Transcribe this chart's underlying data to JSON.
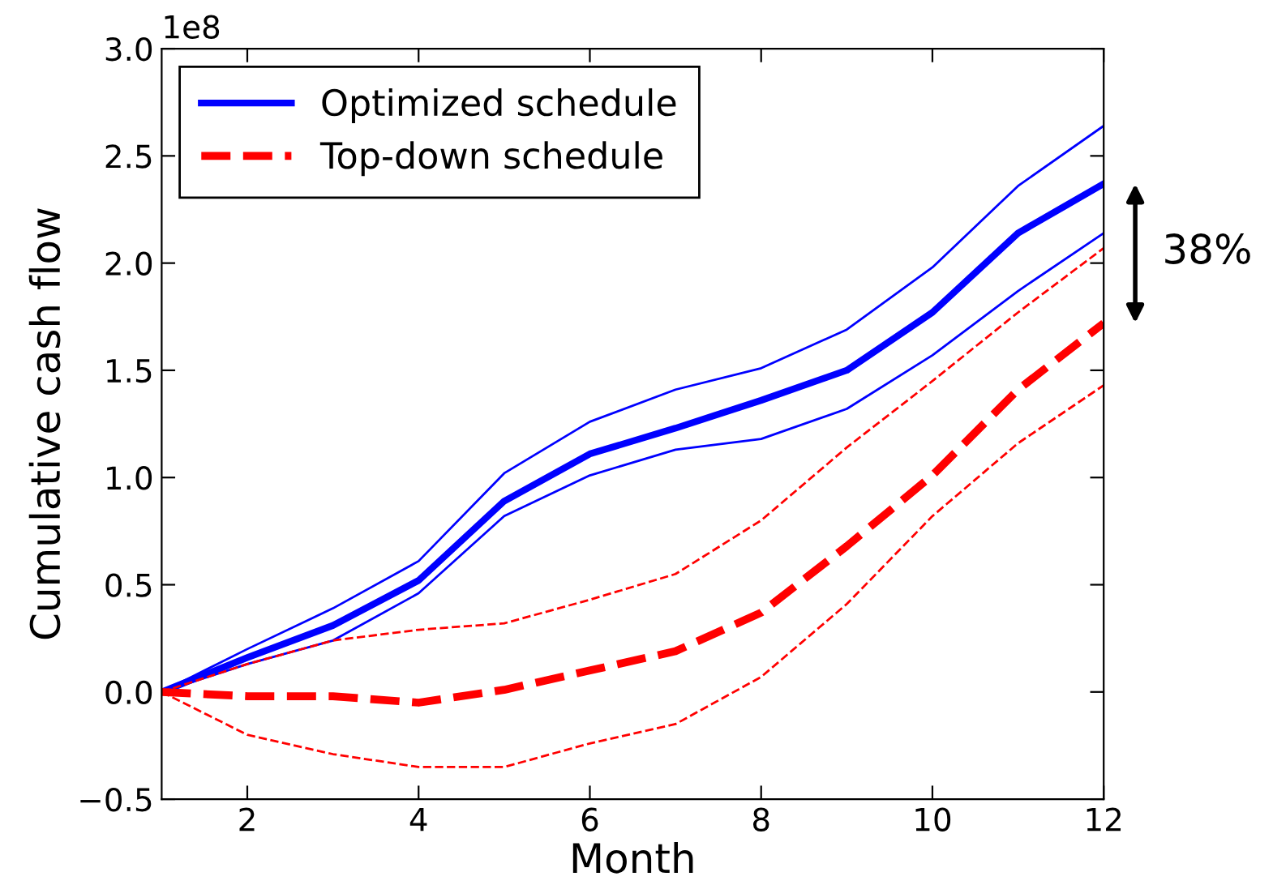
{
  "chart_data": {
    "type": "line",
    "xlabel": "Month",
    "ylabel": "Cumulative cash flow",
    "x": [
      1,
      2,
      3,
      4,
      5,
      6,
      7,
      8,
      9,
      10,
      11,
      12
    ],
    "series": [
      {
        "name": "Optimized schedule",
        "color": "#0000ff",
        "line_style": "solid",
        "values": [
          0,
          0.16,
          0.31,
          0.52,
          0.89,
          1.11,
          1.23,
          1.36,
          1.5,
          1.77,
          2.14,
          2.37
        ]
      },
      {
        "color": "#0000ff",
        "line_style": "solid",
        "values": [
          0,
          0.2,
          0.39,
          0.61,
          1.02,
          1.26,
          1.41,
          1.51,
          1.69,
          1.98,
          2.36,
          2.64
        ]
      },
      {
        "color": "#0000ff",
        "line_style": "solid",
        "values": [
          0,
          0.13,
          0.24,
          0.46,
          0.82,
          1.01,
          1.13,
          1.18,
          1.32,
          1.57,
          1.87,
          2.14
        ]
      },
      {
        "name": "Top-down schedule",
        "color": "#ff0000",
        "line_style": "dashed",
        "values": [
          0,
          -0.02,
          -0.02,
          -0.05,
          0.01,
          0.1,
          0.19,
          0.37,
          0.68,
          1.01,
          1.41,
          1.72
        ]
      },
      {
        "color": "#ff0000",
        "line_style": "dashed",
        "values": [
          0,
          0.13,
          0.24,
          0.29,
          0.32,
          0.43,
          0.55,
          0.8,
          1.14,
          1.45,
          1.77,
          2.07
        ]
      },
      {
        "color": "#ff0000",
        "line_style": "dashed",
        "values": [
          0,
          -0.2,
          -0.29,
          -0.35,
          -0.35,
          -0.24,
          -0.15,
          0.07,
          0.41,
          0.82,
          1.16,
          1.43
        ]
      }
    ],
    "xlim": [
      1,
      12
    ],
    "xticks": [
      2,
      4,
      6,
      8,
      10,
      12
    ],
    "ylim": [
      -0.5,
      3.0
    ],
    "yticks": [
      {
        "value": -0.5,
        "label": "−0.5"
      },
      {
        "value": 0,
        "label": "0.0"
      },
      {
        "value": 0.5,
        "label": "0.5"
      },
      {
        "value": 1.0,
        "label": "1.0"
      },
      {
        "value": 1.5,
        "label": "1.5"
      },
      {
        "value": 2.0,
        "label": "2.0"
      },
      {
        "value": 2.5,
        "label": "2.5"
      },
      {
        "value": 3.0,
        "label": "3.0"
      }
    ],
    "annotations": [
      "1e8",
      {
        "text": "38%",
        "x": 12,
        "y": 2.05
      }
    ],
    "grid": false,
    "legend": "top left"
  }
}
